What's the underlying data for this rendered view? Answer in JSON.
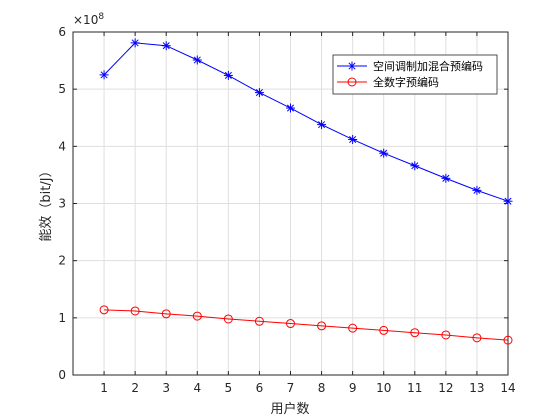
{
  "chart_data": {
    "type": "line",
    "xlabel": "用户数",
    "ylabel": "能效（bit/J）",
    "y_exponent_label": "×10",
    "y_exponent_power": "8",
    "x": [
      1,
      2,
      3,
      4,
      5,
      6,
      7,
      8,
      9,
      10,
      11,
      12,
      13,
      14
    ],
    "xlim": [
      0,
      14
    ],
    "ylim": [
      0,
      6
    ],
    "y_scale": 100000000,
    "x_ticks": [
      "1",
      "2",
      "3",
      "4",
      "5",
      "6",
      "7",
      "8",
      "9",
      "10",
      "11",
      "12",
      "13",
      "14"
    ],
    "y_ticks": [
      "0",
      "1",
      "2",
      "3",
      "4",
      "5",
      "6"
    ],
    "grid": true,
    "legend_position": "top-right",
    "series": [
      {
        "name": "空间调制加混合预编码",
        "color": "#0000ff",
        "marker": "asterisk",
        "values": [
          525000000,
          581000000,
          576000000,
          551000000,
          524000000,
          494000000,
          467000000,
          438000000,
          412000000,
          388000000,
          366000000,
          344000000,
          323000000,
          304000000
        ]
      },
      {
        "name": "全数字预编码",
        "color": "#ff0000",
        "marker": "circle",
        "values": [
          114000000,
          112000000,
          107000000,
          103000000,
          98000000,
          94000000,
          90000000,
          86000000,
          82000000,
          78000000,
          74000000,
          70000000,
          65000000,
          61000000
        ]
      }
    ]
  }
}
